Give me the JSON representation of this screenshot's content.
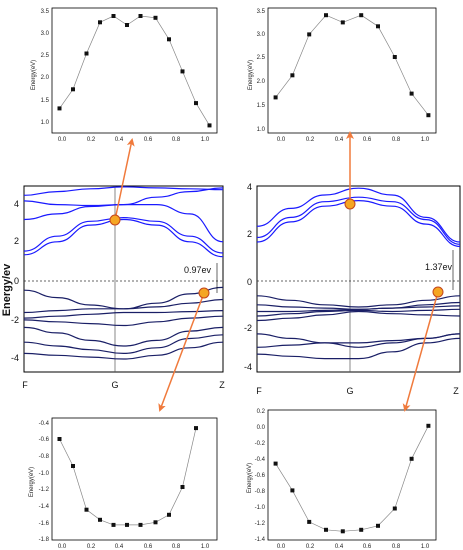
{
  "chart_data": [
    {
      "id": "top-left",
      "type": "scatter",
      "lines": true,
      "ylabel": "Energy(eV)",
      "x": [
        0.0,
        0.09,
        0.18,
        0.27,
        0.36,
        0.45,
        0.54,
        0.64,
        0.73,
        0.82,
        0.91,
        1.0
      ],
      "values": [
        1.35,
        1.78,
        2.58,
        3.28,
        3.42,
        3.22,
        3.42,
        3.38,
        2.9,
        2.18,
        1.47,
        0.97
      ],
      "xlim": [
        -0.05,
        1.05
      ],
      "ylim": [
        0.8,
        3.6
      ],
      "xticks": [
        "0.0",
        "0.2",
        "0.4",
        "0.6",
        "0.8",
        "1.0"
      ],
      "yticks": [
        "1.0",
        "1.5",
        "2.0",
        "2.5",
        "3.0",
        "3.5"
      ]
    },
    {
      "id": "top-right",
      "type": "scatter",
      "lines": true,
      "ylabel": "Energy(eV)",
      "x": [
        0.0,
        0.11,
        0.22,
        0.33,
        0.44,
        0.56,
        0.67,
        0.78,
        0.89,
        1.0
      ],
      "values": [
        1.74,
        2.2,
        3.05,
        3.45,
        3.3,
        3.45,
        3.22,
        2.58,
        1.82,
        1.37
      ],
      "xlim": [
        -0.05,
        1.05
      ],
      "ylim": [
        1.0,
        3.6
      ],
      "xticks": [
        "0.0",
        "0.2",
        "0.4",
        "0.6",
        "0.8",
        "1.0"
      ],
      "yticks": [
        "1.0",
        "1.5",
        "2.0",
        "2.5",
        "3.0",
        "3.5"
      ]
    },
    {
      "id": "middle-left",
      "type": "line",
      "ylabel": "Energy/ev",
      "xticks": [
        "F",
        "G",
        "Z"
      ],
      "yticks": [
        "4",
        "2",
        "0",
        "-2",
        "-4"
      ],
      "ylim": [
        -5,
        5
      ],
      "gap_label": "0.97ev",
      "series": [
        {
          "values": [
            4.5,
            4.7,
            4.85,
            4.95,
            4.9,
            4.85,
            4.8
          ],
          "color": "#1a1aff"
        },
        {
          "values": [
            4.2,
            4.0,
            3.95,
            4.0,
            4.4,
            4.7,
            4.9
          ],
          "color": "#1a1aff"
        },
        {
          "values": [
            3.2,
            3.5,
            3.9,
            4.0,
            4.0,
            3.5,
            2.0
          ],
          "color": "#1a1aff"
        },
        {
          "values": [
            1.5,
            2.3,
            3.1,
            3.3,
            3.1,
            2.3,
            1.4
          ],
          "color": "#1a1aff"
        },
        {
          "values": [
            1.3,
            2.0,
            2.9,
            3.2,
            2.9,
            2.0,
            1.2
          ],
          "color": "#1a1aff"
        },
        {
          "values": [
            -0.6,
            -1.0,
            -1.4,
            -1.6,
            -1.3,
            -0.8,
            -0.45
          ],
          "color": "#1a1f66"
        },
        {
          "values": [
            -1.8,
            -1.7,
            -1.6,
            -1.6,
            -1.5,
            -1.3,
            -1.1
          ],
          "color": "#1a1f66"
        },
        {
          "values": [
            -2.1,
            -2.0,
            -1.9,
            -1.8,
            -1.8,
            -1.75,
            -1.7
          ],
          "color": "#1a1f66"
        },
        {
          "values": [
            -2.2,
            -2.3,
            -2.4,
            -2.5,
            -2.3,
            -2.1,
            -2.0
          ],
          "color": "#1a1f66"
        },
        {
          "values": [
            -2.6,
            -2.9,
            -3.3,
            -3.6,
            -3.3,
            -2.8,
            -2.6
          ],
          "color": "#1a1f66"
        },
        {
          "values": [
            -3.4,
            -3.6,
            -3.8,
            -4.0,
            -3.7,
            -3.2,
            -3.0
          ],
          "color": "#1a1f66"
        },
        {
          "values": [
            -4.0,
            -4.1,
            -4.2,
            -4.3,
            -4.1,
            -3.7,
            -3.4
          ],
          "color": "#1a1f66"
        }
      ]
    },
    {
      "id": "middle-right",
      "type": "line",
      "ylabel": "Energy/ev",
      "xticks": [
        "F",
        "G",
        "Z"
      ],
      "yticks": [
        "4",
        "2",
        "0",
        "-2",
        "-4"
      ],
      "ylim": [
        -4.3,
        4
      ],
      "gap_label": "1.37ev",
      "series": [
        {
          "values": [
            2.2,
            3.0,
            3.6,
            3.9,
            3.6,
            2.6,
            1.5
          ],
          "color": "#1a1aff"
        },
        {
          "values": [
            1.7,
            2.6,
            3.3,
            3.5,
            3.3,
            2.5,
            1.4
          ],
          "color": "#1a1aff"
        },
        {
          "values": [
            1.5,
            2.4,
            3.1,
            3.35,
            3.1,
            2.3,
            1.3
          ],
          "color": "#1a1aff"
        },
        {
          "values": [
            -0.9,
            -1.1,
            -1.3,
            -1.4,
            -1.3,
            -1.1,
            -0.9
          ],
          "color": "#1a1f66"
        },
        {
          "values": [
            -1.3,
            -1.4,
            -1.45,
            -1.5,
            -1.45,
            -1.3,
            -1.2
          ],
          "color": "#1a1f66"
        },
        {
          "values": [
            -1.6,
            -1.6,
            -1.55,
            -1.5,
            -1.45,
            -1.4,
            -1.35
          ],
          "color": "#1a1f66"
        },
        {
          "values": [
            -1.8,
            -1.7,
            -1.6,
            -1.55,
            -1.6,
            -1.55,
            -1.5
          ],
          "color": "#1a1f66"
        },
        {
          "values": [
            -2.0,
            -1.9,
            -1.75,
            -1.6,
            -1.7,
            -1.75,
            -1.8
          ],
          "color": "#1a1f66"
        },
        {
          "values": [
            -2.6,
            -2.8,
            -3.0,
            -3.2,
            -3.0,
            -2.8,
            -2.6
          ],
          "color": "#1a1f66"
        },
        {
          "values": [
            -3.2,
            -3.1,
            -3.0,
            -3.0,
            -2.9,
            -2.8,
            -2.6
          ],
          "color": "#1a1f66"
        },
        {
          "values": [
            -3.5,
            -3.6,
            -3.7,
            -3.7,
            -3.4,
            -3.0,
            -2.8
          ],
          "color": "#1a1f66"
        }
      ]
    },
    {
      "id": "bottom-left",
      "type": "scatter",
      "lines": true,
      "ylabel": "Energy(eV)",
      "x": [
        0.0,
        0.09,
        0.18,
        0.27,
        0.36,
        0.45,
        0.54,
        0.64,
        0.73,
        0.82,
        0.91
      ],
      "values": [
        -0.6,
        -0.92,
        -1.44,
        -1.56,
        -1.62,
        -1.62,
        -1.62,
        -1.59,
        -1.5,
        -1.17,
        -0.47
      ],
      "xlim": [
        -0.05,
        1.05
      ],
      "ylim": [
        -1.8,
        -0.35
      ],
      "xticks": [
        "0.0",
        "0.2",
        "0.4",
        "0.6",
        "0.8",
        "1.0"
      ],
      "yticks": [
        "-0.4",
        "-0.6",
        "-0.8",
        "-1.0",
        "-1.2",
        "-1.4",
        "-1.6",
        "-1.8"
      ]
    },
    {
      "id": "bottom-right",
      "type": "scatter",
      "lines": true,
      "ylabel": "Energy(eV)",
      "x": [
        0.0,
        0.11,
        0.22,
        0.33,
        0.44,
        0.56,
        0.67,
        0.78,
        0.89,
        1.0
      ],
      "values": [
        -0.48,
        -0.82,
        -1.22,
        -1.32,
        -1.34,
        -1.32,
        -1.27,
        -1.05,
        -0.42,
        0.0
      ],
      "xlim": [
        -0.05,
        1.05
      ],
      "ylim": [
        -1.45,
        0.2
      ],
      "xticks": [
        "0.0",
        "0.2",
        "0.4",
        "0.6",
        "0.8",
        "1.0"
      ],
      "yticks": [
        "0.2",
        "0.0",
        "-0.2",
        "-0.4",
        "-0.6",
        "-0.8",
        "-1.0",
        "-1.2",
        "-1.4"
      ]
    }
  ],
  "colors": {
    "arrow": "#f07a3c",
    "marker_fill": "#f5a623",
    "marker_stroke": "#c4451b",
    "conduction": "#1a1aff",
    "valence": "#1a1f66"
  }
}
